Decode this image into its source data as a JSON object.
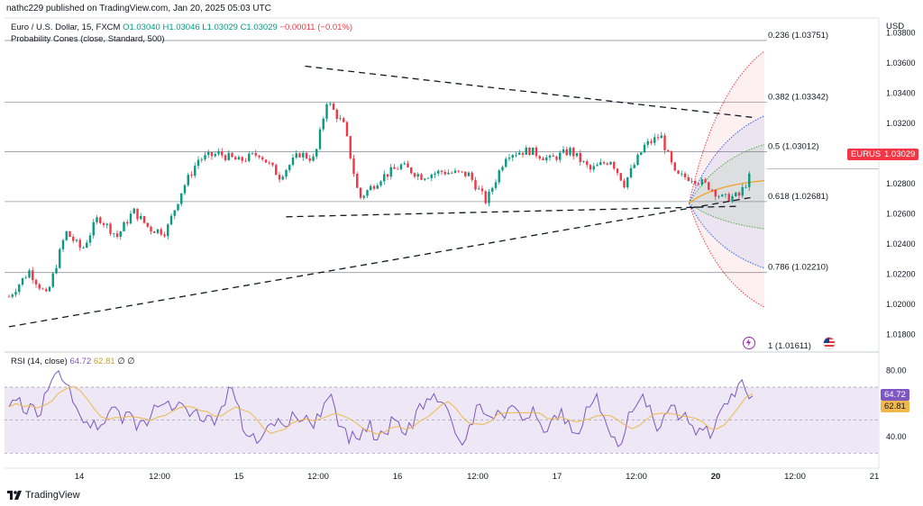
{
  "header": {
    "published": "nathc229 published on TradingView.com, Jan 20, 2025 05:03 UTC"
  },
  "legend": {
    "symbol": "Euro / U.S. Dollar, 15, FXCM",
    "open": "O1.03040",
    "high": "H1.03046",
    "low": "L1.03029",
    "close": "C1.03029",
    "change": "−0.00011 (−0.01%)",
    "indicator": "Probability Cones (close, Standard, 500)"
  },
  "price_axis": {
    "currency": "USD",
    "ticks": [
      "1.03800",
      "1.03600",
      "1.03400",
      "1.03200",
      "1.03000",
      "1.02800",
      "1.02600",
      "1.02400",
      "1.02200",
      "1.02000",
      "1.01800"
    ]
  },
  "fib_levels": [
    {
      "label": "0.236 (1.03751)",
      "price": 1.03751
    },
    {
      "label": "0.382 (1.03342)",
      "price": 1.03342
    },
    {
      "label": "0.5 (1.03012)",
      "price": 1.03012
    },
    {
      "label": "0.618 (1.02681)",
      "price": 1.02681
    },
    {
      "label": "0.786 (1.02210)",
      "price": 1.0221
    },
    {
      "label": "1 (1.01611)",
      "price": 1.01611
    }
  ],
  "symbol_badge": {
    "name": "EURUSD",
    "price": "1.03029",
    "color": "#f23645"
  },
  "rsi": {
    "label": "RSI (14, close)",
    "value": "64.72",
    "ma": "62.81",
    "extra1": "∅",
    "extra2": "∅",
    "ticks": [
      "80.00",
      "40.00"
    ],
    "line_color": "#7e57c2",
    "ma_color": "#f0b84a"
  },
  "time_axis": {
    "ticks": [
      "14",
      "12:00",
      "15",
      "12:00",
      "16",
      "12:00",
      "17",
      "12:00",
      "20",
      "12:00",
      "21"
    ]
  },
  "brand": {
    "name": "TradingView"
  },
  "colors": {
    "up": "#089981",
    "down": "#f23645",
    "rsi_band": "#ede7f6"
  },
  "chart_data": {
    "type": "candlestick",
    "symbol": "EURUSD",
    "timeframe": "15",
    "ylim": [
      1.017,
      1.039
    ],
    "rsi_ylim": [
      22,
      88
    ],
    "key_path": [
      [
        0,
        1.0205
      ],
      [
        1.5,
        1.0222
      ],
      [
        2.8,
        1.0205
      ],
      [
        4.2,
        1.0248
      ],
      [
        5.4,
        1.0236
      ],
      [
        6.6,
        1.0258
      ],
      [
        8,
        1.0245
      ],
      [
        9.2,
        1.0262
      ],
      [
        10.4,
        1.025
      ],
      [
        11.6,
        1.0248
      ],
      [
        12.8,
        1.0276
      ],
      [
        14,
        1.0296
      ],
      [
        15.5,
        1.03
      ],
      [
        17,
        1.0295
      ],
      [
        18.5,
        1.03
      ],
      [
        20,
        1.0285
      ],
      [
        21.5,
        1.03
      ],
      [
        22.6,
        1.0296
      ],
      [
        23.5,
        1.0335
      ],
      [
        24.8,
        1.0318
      ],
      [
        25.9,
        1.027
      ],
      [
        27.5,
        1.0284
      ],
      [
        29,
        1.0292
      ],
      [
        30.5,
        1.0285
      ],
      [
        32,
        1.0288
      ],
      [
        34,
        1.0286
      ],
      [
        35.3,
        1.0268
      ],
      [
        36.8,
        1.03
      ],
      [
        38.5,
        1.0302
      ],
      [
        40,
        1.0296
      ],
      [
        41.5,
        1.0302
      ],
      [
        43,
        1.0289
      ],
      [
        44.5,
        1.0296
      ],
      [
        45.5,
        1.028
      ],
      [
        47,
        1.0305
      ],
      [
        48.2,
        1.0312
      ],
      [
        49.3,
        1.0285
      ],
      [
        50.5,
        1.0284
      ],
      [
        51.8,
        1.0278
      ],
      [
        52.8,
        1.027
      ],
      [
        54,
        1.0272
      ],
      [
        55,
        1.02882
      ]
    ],
    "rsi_values": [
      58,
      62,
      55,
      60,
      52,
      66,
      74,
      80,
      72,
      61,
      53,
      49,
      50,
      47,
      54,
      58,
      48,
      55,
      44,
      50,
      52,
      58,
      60,
      56,
      61,
      57,
      55,
      50,
      53,
      47,
      58,
      70,
      62,
      44,
      40,
      36,
      42,
      48,
      51,
      46,
      55,
      49,
      53,
      45,
      52,
      63,
      58,
      46,
      36,
      39,
      45,
      50,
      38,
      42,
      52,
      49,
      41,
      45,
      60,
      63,
      66,
      61,
      56,
      42,
      35,
      47,
      59,
      54,
      52,
      56,
      51,
      59,
      55,
      51,
      58,
      48,
      43,
      53,
      57,
      50,
      42,
      47,
      58,
      66,
      52,
      40,
      34,
      43,
      55,
      62,
      58,
      50,
      46,
      55,
      59,
      52,
      48,
      41,
      44,
      39,
      52,
      60,
      66,
      72,
      68,
      64.72
    ],
    "trendlines": [
      {
        "name": "upper-descending",
        "points": [
          [
            21.9,
            1.0358
          ],
          [
            55,
            1.0324
          ]
        ]
      },
      {
        "name": "lower-horizontal",
        "points": [
          [
            20.5,
            1.0258
          ],
          [
            54,
            1.0265
          ]
        ]
      },
      {
        "name": "rising-support",
        "points": [
          [
            0,
            1.0185
          ],
          [
            55,
            1.0271
          ]
        ]
      }
    ],
    "cone_apex": [
      50.3,
      1.0267
    ]
  }
}
